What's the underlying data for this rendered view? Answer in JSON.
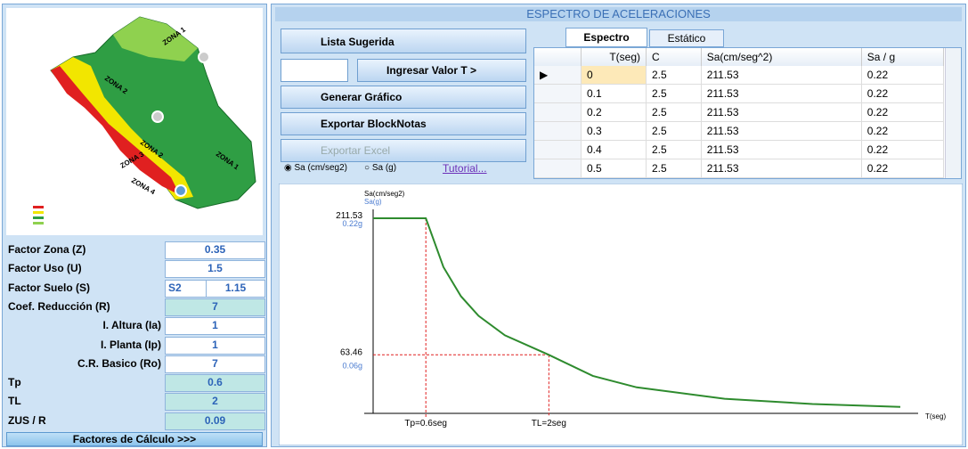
{
  "header": {
    "title": "ESPECTRO DE ACELERACIONES"
  },
  "map": {
    "zones": [
      "ZONA 1",
      "ZONA 2",
      "ZONA 2",
      "ZONA 1",
      "ZONA 3",
      "ZONA 4"
    ]
  },
  "factors": [
    {
      "label": "Factor Zona (Z)",
      "value": "0.35"
    },
    {
      "label": "Factor Uso (U)",
      "value": "1.5"
    },
    {
      "label": "Factor Suelo (S)",
      "option": "S2",
      "value": "1.15"
    },
    {
      "label": "Coef. Reducción (R)",
      "value": "7"
    },
    {
      "label": "I. Altura (Ia)",
      "value": "1"
    },
    {
      "label": "I. Planta (Ip)",
      "value": "1"
    },
    {
      "label": "C.R. Basico (Ro)",
      "value": "7"
    },
    {
      "label": "Tp",
      "value": "0.6"
    },
    {
      "label": "TL",
      "value": "2"
    },
    {
      "label": "ZUS / R",
      "value": "0.09"
    }
  ],
  "footer_button": "Factores de Cálculo >>>",
  "buttons": {
    "lista": "Lista Sugerida",
    "ingresar": "Ingresar Valor T >",
    "generar": "Generar Gráfico",
    "exportar_block": "Exportar BlockNotas",
    "exportar_excel": "Exportar Excel"
  },
  "radios": [
    "Sa (cm/seg2)",
    "Sa (g)"
  ],
  "tutorial": "Tutorial...",
  "tabs": [
    "Espectro",
    "Estático"
  ],
  "table": {
    "columns": [
      "T(seg)",
      "C",
      "Sa(cm/seg^2)",
      "Sa / g"
    ],
    "rows": [
      [
        "0",
        "2.5",
        "211.53",
        "0.22"
      ],
      [
        "0.1",
        "2.5",
        "211.53",
        "0.22"
      ],
      [
        "0.2",
        "2.5",
        "211.53",
        "0.22"
      ],
      [
        "0.3",
        "2.5",
        "211.53",
        "0.22"
      ],
      [
        "0.4",
        "2.5",
        "211.53",
        "0.22"
      ],
      [
        "0.5",
        "2.5",
        "211.53",
        "0.22"
      ]
    ]
  },
  "chart_data": {
    "type": "line",
    "y_label": "Sa(cm/seg2)",
    "y2_label": "Sa(g)",
    "x_label": "T(seg)",
    "x": [
      0,
      0.6,
      0.8,
      1,
      1.2,
      1.5,
      2,
      2.5,
      3,
      4,
      5,
      6
    ],
    "series": [
      {
        "name": "Sa",
        "color": "#2e8b2e",
        "values": [
          211.53,
          211.53,
          158.65,
          126.92,
          105.77,
          84.61,
          63.46,
          40.61,
          28.2,
          15.86,
          10.15,
          7.05
        ]
      }
    ],
    "xlim": [
      0,
      6
    ],
    "ylim": [
      0,
      211.53
    ],
    "y2lim": [
      0,
      0.22
    ],
    "xticks": [
      {
        "value": 0.6,
        "label": "Tp=0.6seg"
      },
      {
        "value": 2,
        "label": "TL=2seg"
      }
    ],
    "yticks": [
      211.53,
      63.46
    ],
    "y2ticks": [
      {
        "value": 0.22,
        "label": "0.22g"
      },
      {
        "value": 0.06,
        "label": "0.06g"
      }
    ]
  }
}
